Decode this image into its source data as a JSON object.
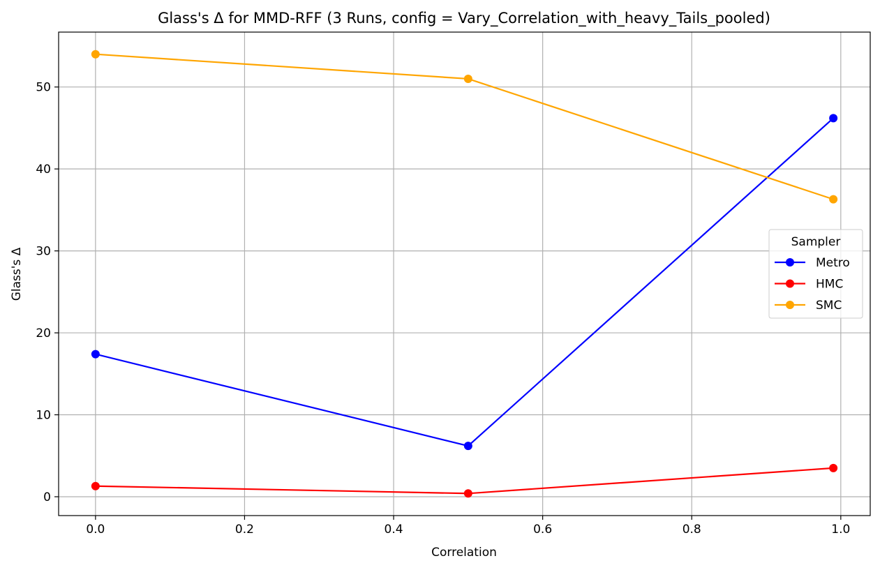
{
  "chart_data": {
    "type": "line",
    "title": "Glass's Δ for MMD-RFF (3 Runs, config = Vary_Correlation_with_heavy_Tails_pooled)",
    "xlabel": "Correlation",
    "ylabel": "Glass's Δ",
    "x": [
      0.0,
      0.5,
      0.99
    ],
    "xlim": [
      -0.0495,
      1.0395
    ],
    "ylim": [
      -2.3,
      56.7
    ],
    "xticks": [
      0.0,
      0.2,
      0.4,
      0.6,
      0.8,
      1.0
    ],
    "xtick_labels": [
      "0.0",
      "0.2",
      "0.4",
      "0.6",
      "0.8",
      "1.0"
    ],
    "yticks": [
      0,
      10,
      20,
      30,
      40,
      50
    ],
    "ytick_labels": [
      "0",
      "10",
      "20",
      "30",
      "40",
      "50"
    ],
    "grid": true,
    "legend": {
      "title": "Sampler",
      "placement": "center-right"
    },
    "series": [
      {
        "name": "Metro",
        "color": "#0000ff",
        "values": [
          17.4,
          6.2,
          46.2
        ]
      },
      {
        "name": "HMC",
        "color": "#ff0000",
        "values": [
          1.3,
          0.4,
          3.5
        ]
      },
      {
        "name": "SMC",
        "color": "#ffa500",
        "values": [
          54.0,
          51.0,
          36.3
        ]
      }
    ]
  }
}
